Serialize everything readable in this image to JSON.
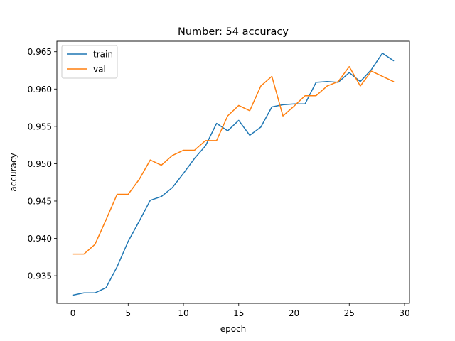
{
  "chart_data": {
    "type": "line",
    "title": "Number: 54 accuracy",
    "xlabel": "epoch",
    "ylabel": "accuracy",
    "xlim": [
      -1.45,
      30.45
    ],
    "ylim": [
      0.9313,
      0.9664
    ],
    "xticks": [
      0,
      5,
      10,
      15,
      20,
      25,
      30
    ],
    "yticks": [
      0.935,
      0.94,
      0.945,
      0.95,
      0.955,
      0.96,
      0.965
    ],
    "ytick_labels": [
      "0.935",
      "0.940",
      "0.945",
      "0.950",
      "0.955",
      "0.960",
      "0.965"
    ],
    "grid": false,
    "legend_position": "upper left",
    "x": [
      0,
      1,
      2,
      3,
      4,
      5,
      6,
      7,
      8,
      9,
      10,
      11,
      12,
      13,
      14,
      15,
      16,
      17,
      18,
      19,
      20,
      21,
      22,
      23,
      24,
      25,
      26,
      27,
      28,
      29
    ],
    "series": [
      {
        "name": "train",
        "color": "#1f77b4",
        "values": [
          0.9324,
          0.9327,
          0.9327,
          0.9334,
          0.9362,
          0.9396,
          0.9423,
          0.9451,
          0.9456,
          0.9468,
          0.9487,
          0.9507,
          0.9524,
          0.9554,
          0.9544,
          0.9558,
          0.9538,
          0.9549,
          0.9576,
          0.9579,
          0.958,
          0.958,
          0.9609,
          0.961,
          0.9609,
          0.9622,
          0.961,
          0.9626,
          0.9648,
          0.9638
        ]
      },
      {
        "name": "val",
        "color": "#ff7f0e",
        "values": [
          0.9379,
          0.9379,
          0.9392,
          0.9425,
          0.9459,
          0.9459,
          0.9479,
          0.9505,
          0.9498,
          0.9511,
          0.9518,
          0.9518,
          0.9531,
          0.9531,
          0.9564,
          0.9578,
          0.9571,
          0.9604,
          0.9617,
          0.9564,
          0.9577,
          0.9591,
          0.9591,
          0.9604,
          0.961,
          0.963,
          0.9604,
          0.9624,
          0.9617,
          0.961
        ]
      }
    ]
  }
}
